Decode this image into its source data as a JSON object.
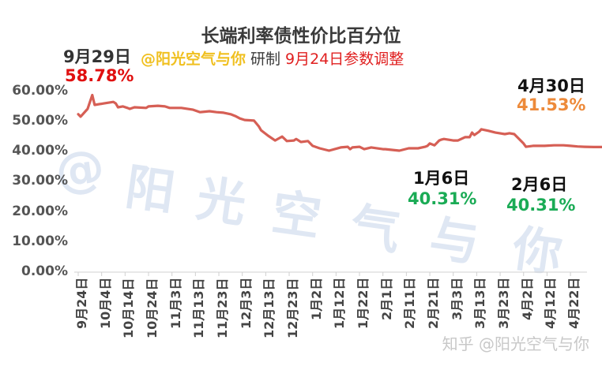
{
  "title": "长端利率债性价比百分位",
  "subtitle": {
    "author": "@阳光空气与你",
    "made": "研制",
    "note": "9月24日参数调整"
  },
  "annotations": [
    {
      "id": "start_peak",
      "date": "9月29日",
      "value": "58.78%",
      "color": "#e01010"
    },
    {
      "id": "latest",
      "date": "4月30日",
      "value": "41.53%",
      "color": "#ed8a3a"
    },
    {
      "id": "jan6",
      "date": "1月6日",
      "value": "40.31%",
      "color": "#1aab55"
    },
    {
      "id": "feb6",
      "date": "2月6日",
      "value": "40.31%",
      "color": "#1aab55"
    }
  ],
  "watermark": [
    "@",
    "阳",
    "光",
    "空",
    "气",
    "与",
    "你"
  ],
  "footer_watermark": "知乎 @阳光空气与你",
  "colors": {
    "line": "#d65f55",
    "axis": "#d0d0d0"
  },
  "chart_data": {
    "type": "line",
    "title": "长端利率债性价比百分位",
    "xlabel": "",
    "ylabel": "",
    "ylim": [
      0,
      60
    ],
    "yticks": [
      "0.00%",
      "10.00%",
      "20.00%",
      "30.00%",
      "40.00%",
      "50.00%",
      "60.00%"
    ],
    "grid": false,
    "legend": null,
    "xticks": [
      "9月24日",
      "10月4日",
      "10月14日",
      "10月24日",
      "11月3日",
      "11月13日",
      "11月23日",
      "12月3日",
      "12月13日",
      "12月23日",
      "1月2日",
      "1月12日",
      "1月22日",
      "2月1日",
      "2月11日",
      "2月21日",
      "3月3日",
      "3月13日",
      "3月23日",
      "4月2日",
      "4月12日",
      "4月22日"
    ],
    "series": [
      {
        "name": "长端利率债性价比百分位",
        "unit": "%",
        "x_days_from_sep24": [
          0,
          1,
          4,
          6,
          7,
          11,
          15,
          16,
          17,
          19,
          21,
          22,
          24,
          29,
          30,
          34,
          37,
          39,
          44,
          49,
          52,
          56,
          59,
          62,
          65,
          67,
          69,
          71,
          75,
          77,
          78,
          81,
          84,
          87,
          89,
          92,
          93,
          95,
          98,
          100,
          103,
          107,
          112,
          115,
          116,
          117,
          120,
          122,
          125,
          130,
          131,
          137,
          141,
          145,
          148,
          149,
          150,
          152,
          154,
          155,
          156,
          160,
          162,
          165,
          167,
          168,
          169,
          171,
          172,
          175,
          178,
          182,
          184,
          186,
          190,
          191,
          194,
          195,
          199,
          203,
          207,
          210,
          213,
          216,
          220,
          224
        ],
        "values": [
          52.4,
          51.6,
          54.2,
          58.78,
          55.5,
          56.0,
          56.5,
          56.0,
          54.7,
          55.0,
          54.5,
          54.2,
          54.7,
          54.5,
          55.0,
          55.2,
          55.0,
          54.5,
          54.5,
          53.9,
          53.1,
          53.4,
          53.1,
          52.9,
          52.4,
          51.8,
          51.0,
          50.5,
          50.3,
          48.4,
          47.1,
          45.3,
          43.7,
          45.0,
          43.5,
          43.7,
          44.2,
          43.2,
          43.5,
          41.9,
          41.1,
          40.31,
          41.4,
          41.6,
          40.8,
          41.4,
          41.6,
          40.8,
          41.4,
          40.8,
          40.8,
          40.31,
          41.1,
          41.1,
          41.6,
          41.9,
          42.7,
          42.1,
          43.7,
          44.0,
          44.2,
          43.7,
          43.7,
          44.8,
          44.8,
          46.3,
          45.5,
          46.6,
          47.4,
          46.9,
          46.3,
          45.8,
          46.1,
          45.8,
          42.7,
          41.6,
          41.9,
          41.9,
          41.9,
          42.1,
          42.1,
          41.9,
          41.7,
          41.6,
          41.53,
          41.53
        ]
      }
    ]
  }
}
